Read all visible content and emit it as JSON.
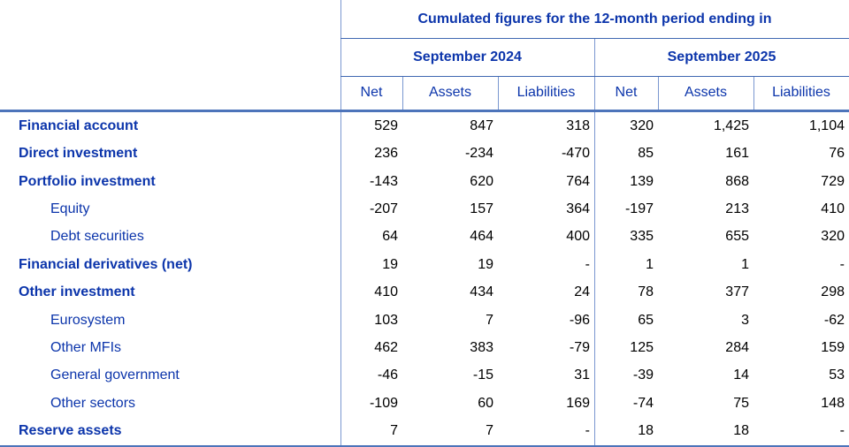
{
  "table": {
    "title": "Cumulated figures for the 12-month period ending in",
    "period_groups": [
      {
        "label": "September 2024"
      },
      {
        "label": "September 2025"
      }
    ],
    "column_headers": [
      "Net",
      "Assets",
      "Liabilities",
      "Net",
      "Assets",
      "Liabilities"
    ],
    "rows": [
      {
        "label": "Financial account",
        "bold": true,
        "indent": false,
        "values": [
          "529",
          "847",
          "318",
          "320",
          "1,425",
          "1,104"
        ]
      },
      {
        "label": "Direct investment",
        "bold": true,
        "indent": false,
        "values": [
          "236",
          "-234",
          "-470",
          "85",
          "161",
          "76"
        ]
      },
      {
        "label": "Portfolio investment",
        "bold": true,
        "indent": false,
        "values": [
          "-143",
          "620",
          "764",
          "139",
          "868",
          "729"
        ]
      },
      {
        "label": "Equity",
        "bold": false,
        "indent": true,
        "values": [
          "-207",
          "157",
          "364",
          "-197",
          "213",
          "410"
        ]
      },
      {
        "label": "Debt securities",
        "bold": false,
        "indent": true,
        "values": [
          "64",
          "464",
          "400",
          "335",
          "655",
          "320"
        ]
      },
      {
        "label": "Financial derivatives (net)",
        "bold": true,
        "indent": false,
        "values": [
          "19",
          "19",
          "-",
          "1",
          "1",
          "-"
        ]
      },
      {
        "label": "Other investment",
        "bold": true,
        "indent": false,
        "values": [
          "410",
          "434",
          "24",
          "78",
          "377",
          "298"
        ]
      },
      {
        "label": "Eurosystem",
        "bold": false,
        "indent": true,
        "values": [
          "103",
          "7",
          "-96",
          "65",
          "3",
          "-62"
        ]
      },
      {
        "label": "Other MFIs",
        "bold": false,
        "indent": true,
        "values": [
          "462",
          "383",
          "-79",
          "125",
          "284",
          "159"
        ]
      },
      {
        "label": "General government",
        "bold": false,
        "indent": true,
        "values": [
          "-46",
          "-15",
          "31",
          "-39",
          "14",
          "53"
        ]
      },
      {
        "label": "Other sectors",
        "bold": false,
        "indent": true,
        "values": [
          "-109",
          "60",
          "169",
          "-74",
          "75",
          "148"
        ]
      },
      {
        "label": "Reserve assets",
        "bold": true,
        "indent": false,
        "values": [
          "7",
          "7",
          "-",
          "18",
          "18",
          "-"
        ]
      }
    ]
  },
  "colors": {
    "text_blue": "#0c35ab",
    "line_thin": "#7a97d0",
    "line_mid": "#3f67b1",
    "line_thick": "#4d74ba",
    "num_black": "#000000"
  }
}
